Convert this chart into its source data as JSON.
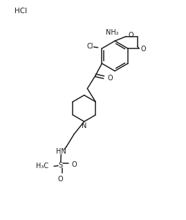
{
  "hcl_label": "HCl",
  "nh2_label": "NH₂",
  "cl_label": "Cl",
  "o_label": "O",
  "n_label": "N",
  "hn_label": "HN",
  "h3c_label": "H₃C",
  "s_label": "S",
  "bg_color": "#ffffff",
  "line_color": "#1a1a1a",
  "text_color": "#1a1a1a",
  "font_size": 7.0,
  "line_width": 1.1
}
